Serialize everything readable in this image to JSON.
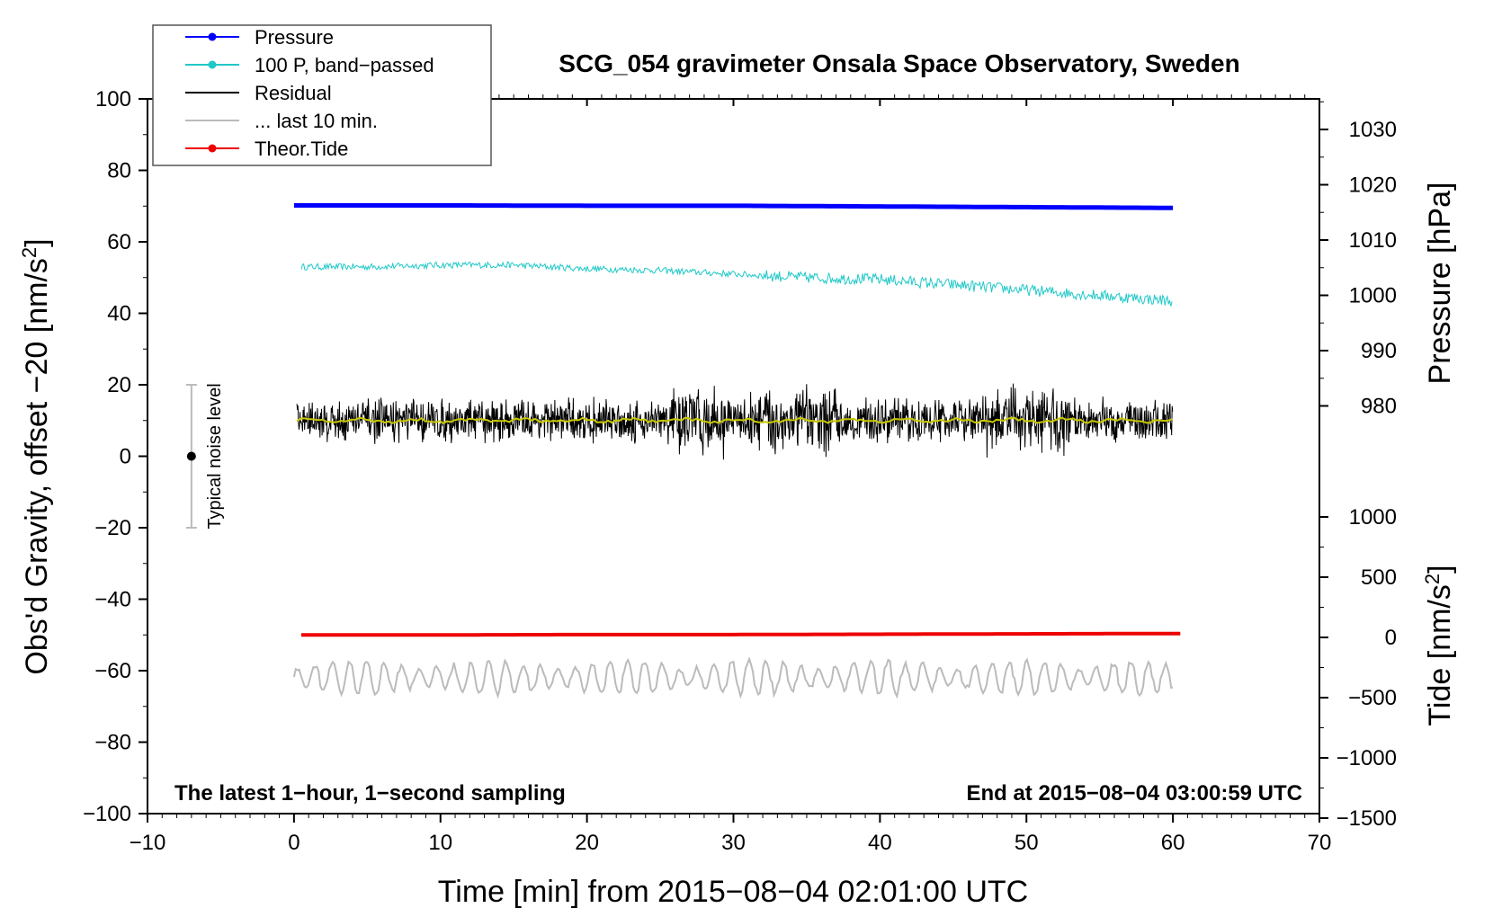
{
  "chart_data": {
    "type": "line",
    "title": "SCG_054 gravimeter Onsala Space Observatory, Sweden",
    "xlabel": "Time [min] from 2015−08−04 02:01:00 UTC",
    "ylabel_left": "Obs'd Gravity, offset −20 [nm/s²]",
    "ylabel_right_pressure": "Pressure [hPa]",
    "ylabel_right_tide": "Tide [nm/s²]",
    "xlim": [
      -10,
      70
    ],
    "ylim_left": [
      -100,
      100
    ],
    "x_ticks": [
      "−10",
      "0",
      "10",
      "20",
      "30",
      "40",
      "50",
      "60",
      "70"
    ],
    "y_ticks_left": [
      "100",
      "80",
      "60",
      "40",
      "20",
      "0",
      "−20",
      "−40",
      "−60",
      "−80",
      "−100"
    ],
    "y_ticks_pressure": [
      "1030",
      "1020",
      "1010",
      "1000",
      "990",
      "980"
    ],
    "y_ticks_tide": [
      "1000",
      "500",
      "0",
      "−500",
      "−1000",
      "−1500"
    ],
    "annotation_left": "The latest 1−hour, 1−second sampling",
    "annotation_right": "End at 2015−08−04 03:00:59 UTC",
    "noise_label": "Typical noise level",
    "noise_bar": {
      "x": -7,
      "center": 0,
      "low": -20,
      "high": 20
    },
    "legend_position": "top-left",
    "legend": [
      {
        "label": "Pressure",
        "color": "#0000ff",
        "marker": true
      },
      {
        "label": "100 P, band−passed",
        "color": "#20c8c8",
        "marker": true
      },
      {
        "label": "Residual",
        "color": "#000000",
        "marker": false
      },
      {
        "label": "... last 10 min.",
        "color": "#bbbbbb",
        "marker": false
      },
      {
        "label": "Theor.Tide",
        "color": "#ee0000",
        "marker": true
      }
    ],
    "series": [
      {
        "name": "Pressure",
        "color": "#0000ff",
        "x": [
          0,
          10,
          20,
          30,
          40,
          45,
          50,
          55,
          60
        ],
        "y": [
          70.2,
          70.2,
          70.1,
          70.1,
          69.9,
          69.8,
          69.7,
          69.6,
          69.5
        ]
      },
      {
        "name": "100 P, band−passed",
        "color": "#20c8c8",
        "x": [
          0,
          5,
          10,
          15,
          20,
          25,
          30,
          35,
          40,
          45,
          50,
          55,
          60
        ],
        "y": [
          53,
          53,
          53.5,
          53.5,
          52.5,
          52,
          51,
          50,
          49.5,
          48,
          46.5,
          45,
          43.5
        ]
      },
      {
        "name": "Residual",
        "color": "#000000",
        "x": [
          0,
          10,
          20,
          30,
          40,
          50,
          60
        ],
        "y": [
          10,
          10,
          10,
          10,
          10,
          10,
          10
        ]
      },
      {
        "name": "... last 10 min.",
        "color": "#bbbbbb",
        "x": [
          0,
          10,
          20,
          30,
          40,
          50,
          60
        ],
        "y": [
          -62,
          -62,
          -62,
          -62,
          -62,
          -62,
          -62
        ]
      },
      {
        "name": "Theor.Tide",
        "color": "#ee0000",
        "x": [
          0,
          10,
          20,
          30,
          40,
          50,
          60
        ],
        "y": [
          -50,
          -50,
          -49.9,
          -49.9,
          -49.8,
          -49.7,
          -49.6
        ]
      }
    ],
    "smoothed_residual_color": "#c8c800"
  }
}
